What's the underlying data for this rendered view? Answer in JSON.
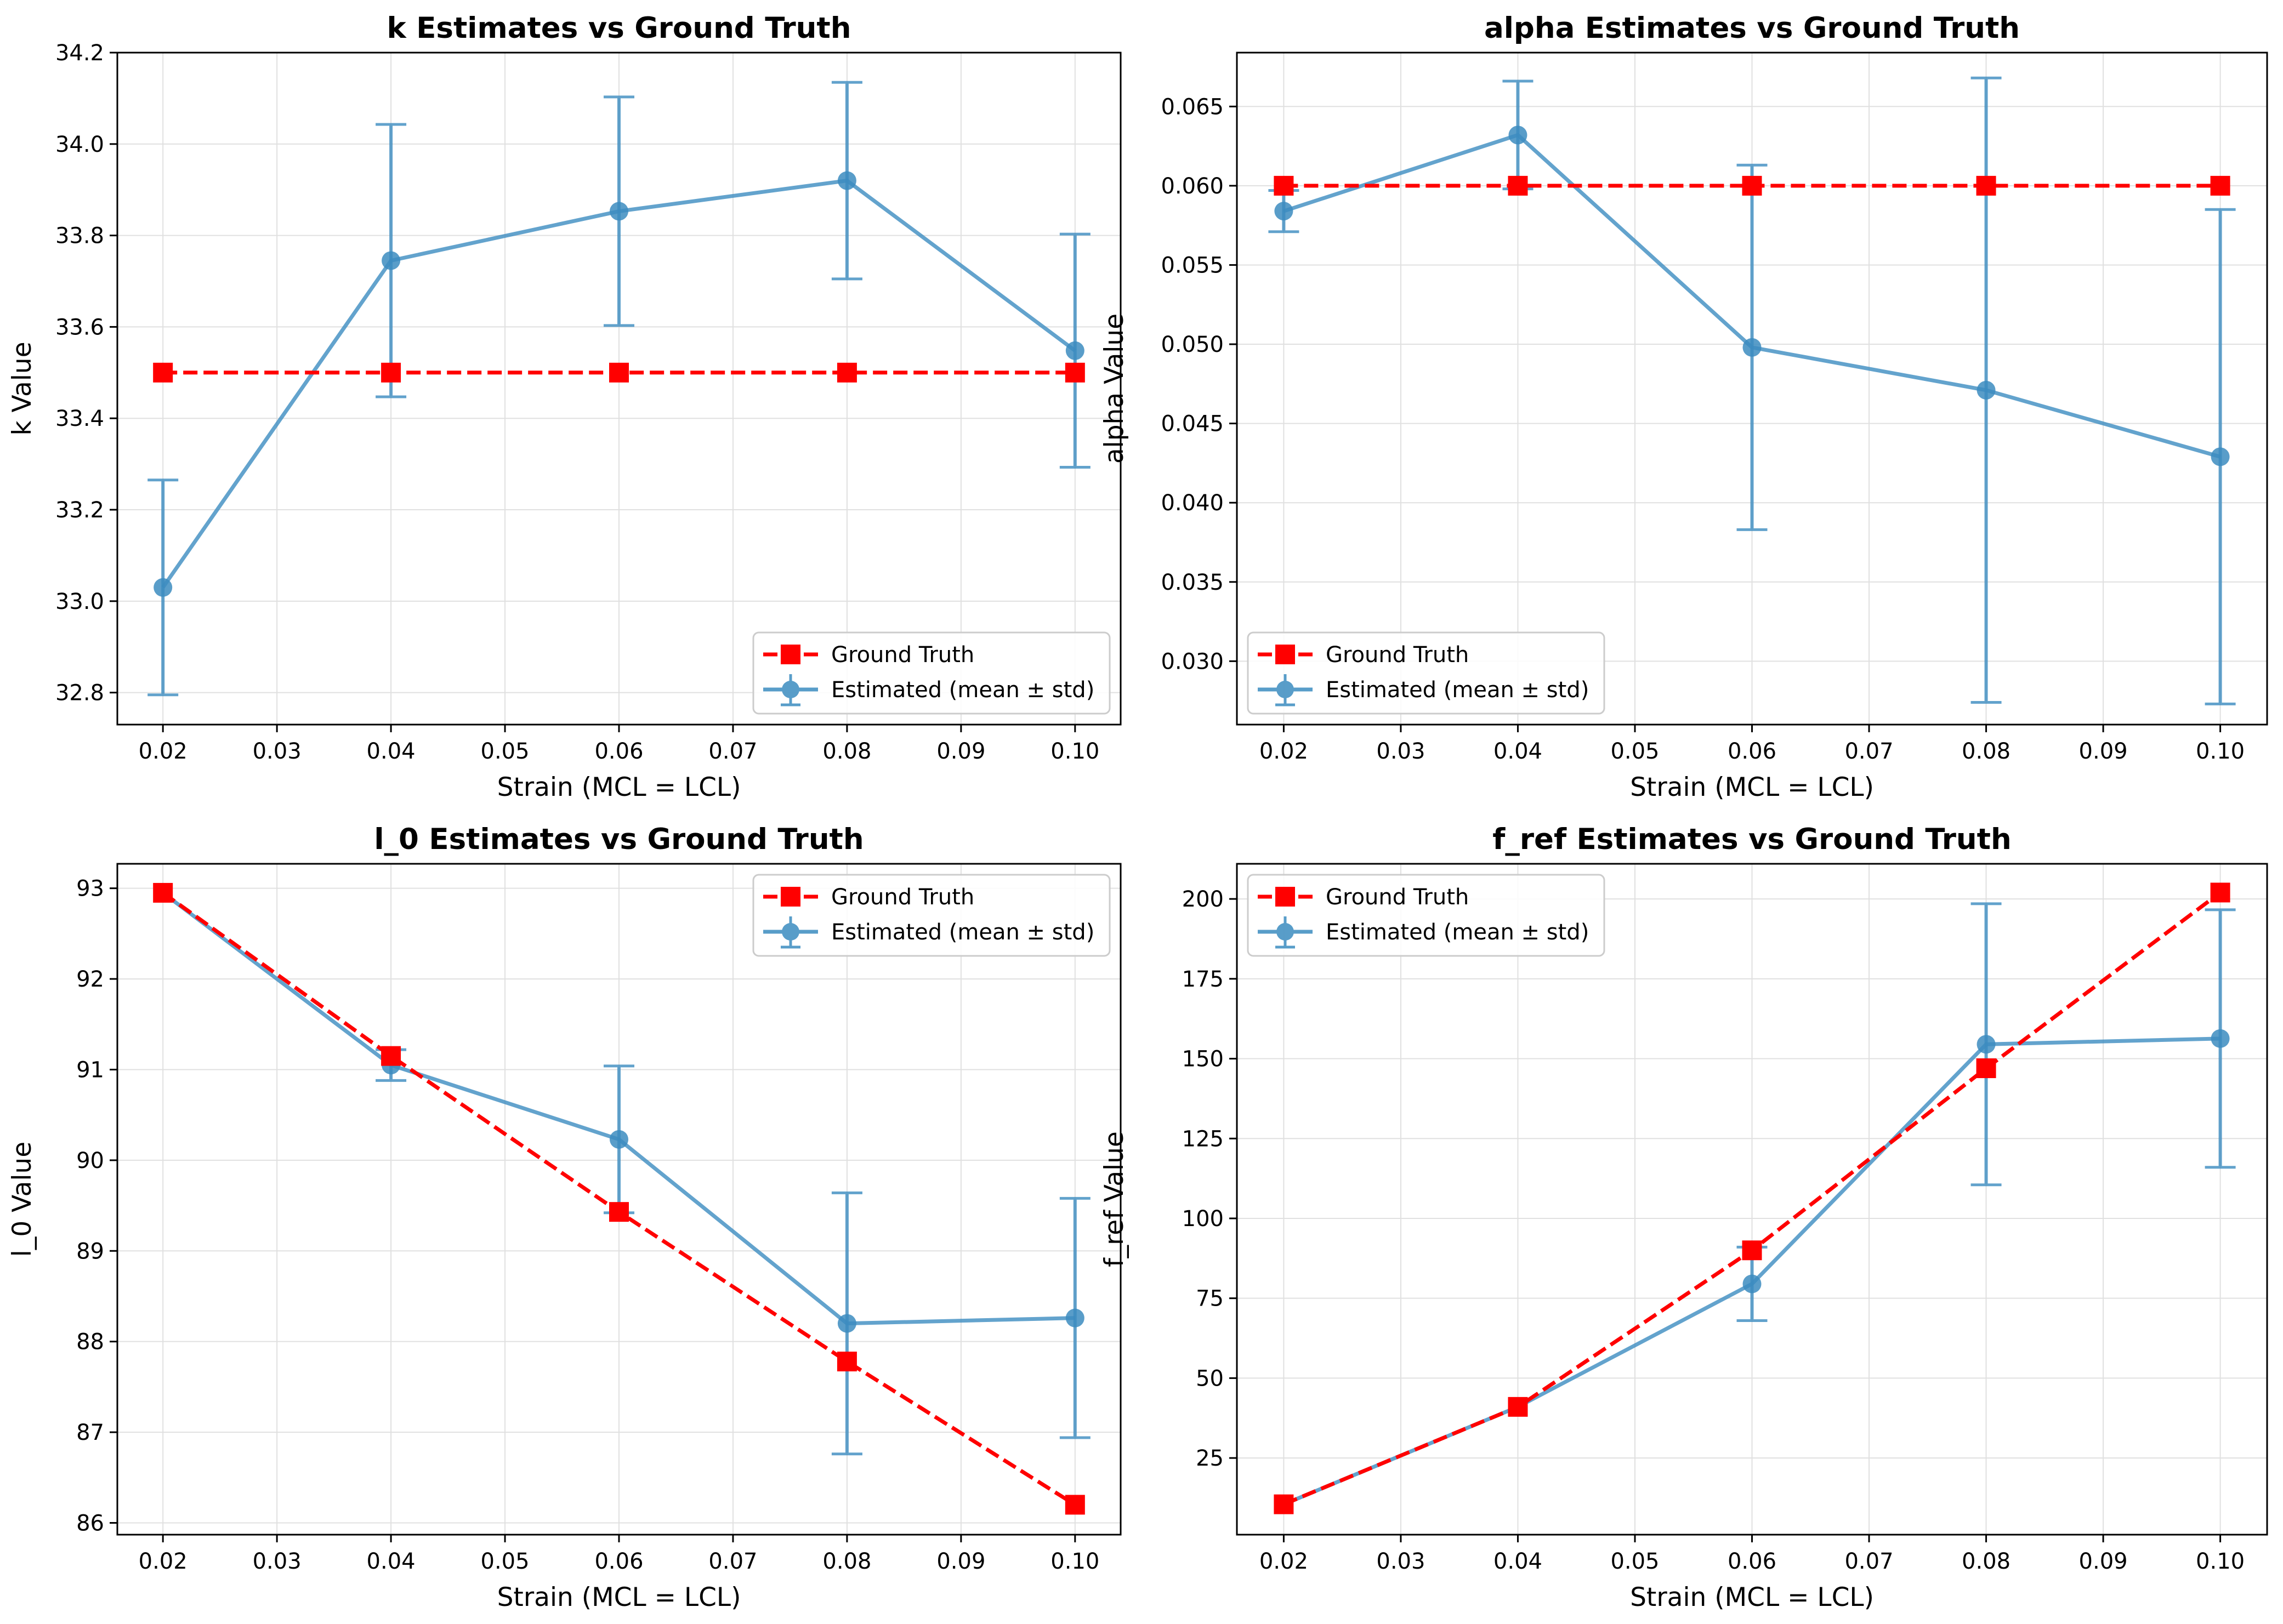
{
  "colors": {
    "ground_truth": "#ff0000",
    "estimated": "#3c8cc0",
    "grid": "#e0e0e0",
    "legend_border": "#cccccc"
  },
  "chart_data": [
    {
      "type": "line",
      "title": "k Estimates vs Ground Truth",
      "xlabel": "Strain (MCL = LCL)",
      "ylabel": "k Value",
      "xlim": [
        0.016,
        0.104
      ],
      "ylim": [
        32.73,
        34.2
      ],
      "xticks": [
        "0.02",
        "0.03",
        "0.04",
        "0.05",
        "0.06",
        "0.07",
        "0.08",
        "0.09",
        "0.10"
      ],
      "yticks": [
        "32.8",
        "33.0",
        "33.2",
        "33.4",
        "33.6",
        "33.8",
        "34.0",
        "34.2"
      ],
      "grid": true,
      "legend_position": "lower-right",
      "x": [
        0.02,
        0.04,
        0.06,
        0.08,
        0.1
      ],
      "series": [
        {
          "name": "Ground Truth",
          "values": [
            33.5,
            33.5,
            33.5,
            33.5,
            33.5
          ]
        },
        {
          "name": "Estimated (mean ± std)",
          "values": [
            33.03,
            33.745,
            33.853,
            33.92,
            33.548
          ],
          "std": [
            0.235,
            0.298,
            0.25,
            0.215,
            0.255
          ]
        }
      ]
    },
    {
      "type": "line",
      "title": "alpha Estimates vs Ground Truth",
      "xlabel": "Strain (MCL = LCL)",
      "ylabel": "alpha Value",
      "xlim": [
        0.016,
        0.104
      ],
      "ylim": [
        0.026,
        0.0684
      ],
      "xticks": [
        "0.02",
        "0.03",
        "0.04",
        "0.05",
        "0.06",
        "0.07",
        "0.08",
        "0.09",
        "0.10"
      ],
      "yticks": [
        "0.030",
        "0.035",
        "0.040",
        "0.045",
        "0.050",
        "0.055",
        "0.060",
        "0.065"
      ],
      "grid": true,
      "legend_position": "lower-left",
      "x": [
        0.02,
        0.04,
        0.06,
        0.08,
        0.1
      ],
      "series": [
        {
          "name": "Ground Truth",
          "values": [
            0.06,
            0.06,
            0.06,
            0.06,
            0.06
          ]
        },
        {
          "name": "Estimated (mean ± std)",
          "values": [
            0.0584,
            0.0632,
            0.0498,
            0.0471,
            0.0429
          ],
          "std": [
            0.0013,
            0.0034,
            0.0115,
            0.0197,
            0.0156
          ]
        }
      ]
    },
    {
      "type": "line",
      "title": "l_0 Estimates vs Ground Truth",
      "xlabel": "Strain (MCL = LCL)",
      "ylabel": "l_0 Value",
      "xlim": [
        0.016,
        0.104
      ],
      "ylim": [
        85.87,
        93.27
      ],
      "xticks": [
        "0.02",
        "0.03",
        "0.04",
        "0.05",
        "0.06",
        "0.07",
        "0.08",
        "0.09",
        "0.10"
      ],
      "yticks": [
        "86",
        "87",
        "88",
        "89",
        "90",
        "91",
        "92",
        "93"
      ],
      "grid": true,
      "legend_position": "upper-right",
      "x": [
        0.02,
        0.04,
        0.06,
        0.08,
        0.1
      ],
      "series": [
        {
          "name": "Ground Truth",
          "values": [
            92.95,
            91.15,
            89.43,
            87.78,
            86.2
          ]
        },
        {
          "name": "Estimated (mean ± std)",
          "values": [
            92.95,
            91.05,
            90.23,
            88.2,
            88.26
          ],
          "std": [
            0.0,
            0.17,
            0.81,
            1.44,
            1.32
          ]
        }
      ]
    },
    {
      "type": "line",
      "title": "f_ref Estimates vs Ground Truth",
      "xlabel": "Strain (MCL = LCL)",
      "ylabel": "f_ref Value",
      "xlim": [
        0.016,
        0.104
      ],
      "ylim": [
        1,
        211
      ],
      "xticks": [
        "0.02",
        "0.03",
        "0.04",
        "0.05",
        "0.06",
        "0.07",
        "0.08",
        "0.09",
        "0.10"
      ],
      "yticks": [
        "25",
        "50",
        "75",
        "100",
        "125",
        "150",
        "175",
        "200"
      ],
      "grid": true,
      "legend_position": "upper-left",
      "x": [
        0.02,
        0.04,
        0.06,
        0.08,
        0.1
      ],
      "series": [
        {
          "name": "Ground Truth",
          "values": [
            10.5,
            41.0,
            90.0,
            147.0,
            202.0
          ]
        },
        {
          "name": "Estimated (mean ± std)",
          "values": [
            10.5,
            41.0,
            79.5,
            154.5,
            156.3
          ],
          "std": [
            0.0,
            0.0,
            11.5,
            44.0,
            40.3
          ]
        }
      ]
    }
  ]
}
